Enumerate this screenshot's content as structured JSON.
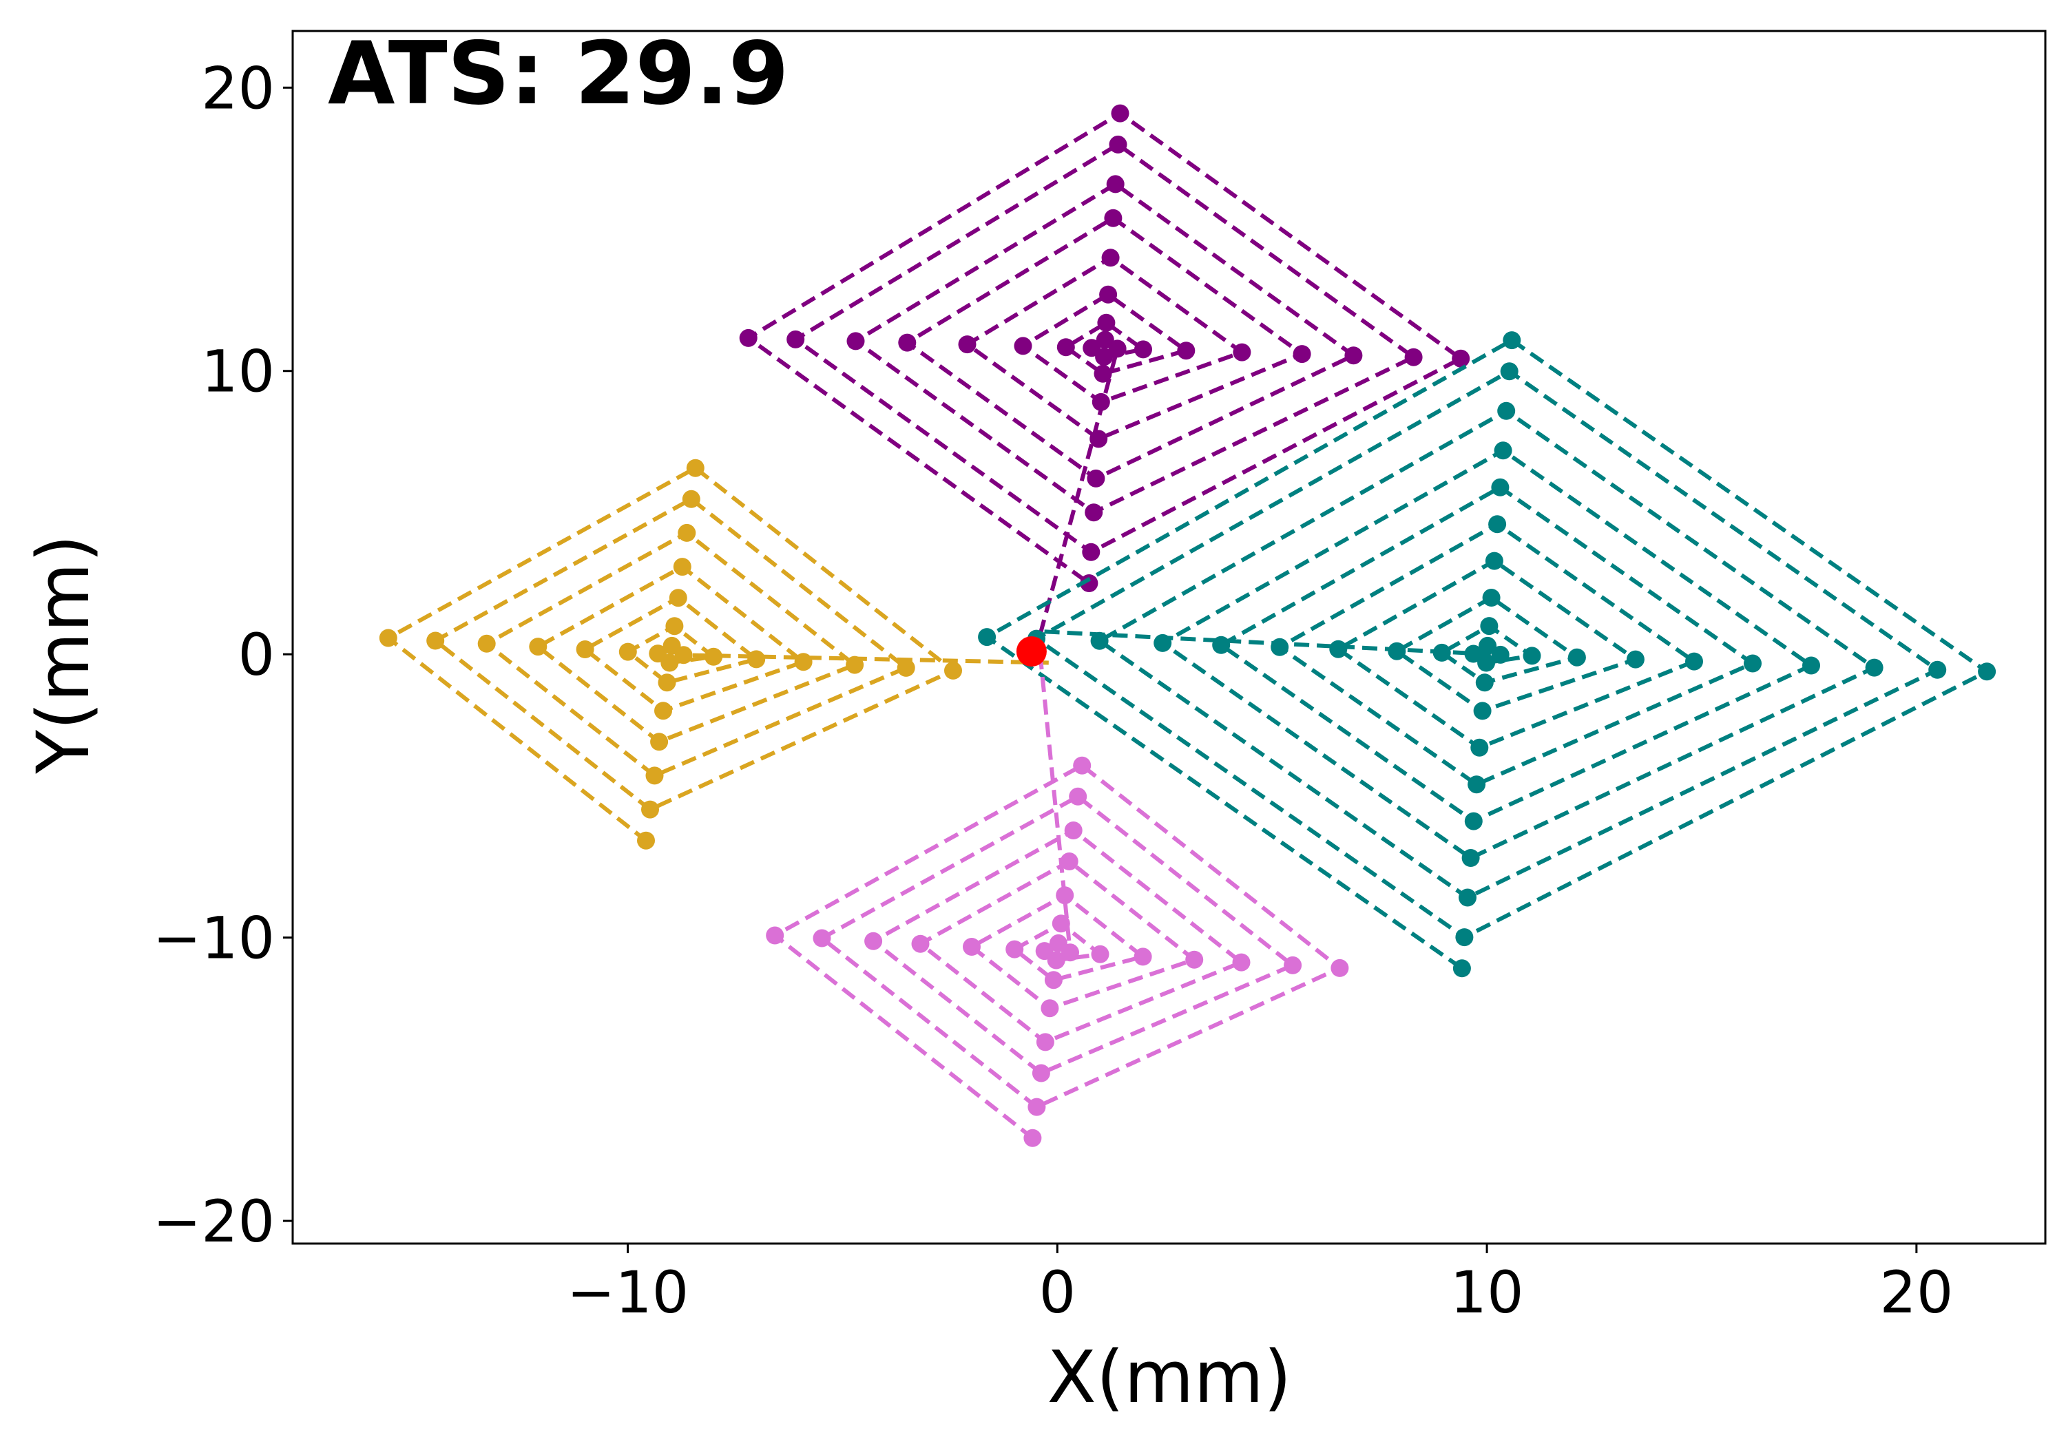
{
  "chart_data": {
    "type": "line",
    "title": "",
    "annotation": "ATS: 29.9",
    "xlabel": "X(mm)",
    "ylabel": "Y(mm)",
    "xlim": [
      -17.8,
      23.0
    ],
    "ylim": [
      -20.8,
      22.0
    ],
    "xticks": [
      -10,
      0,
      10,
      20
    ],
    "yticks": [
      -20,
      -10,
      0,
      10,
      20
    ],
    "xtick_labels": [
      "−10",
      "0",
      "10",
      "20"
    ],
    "ytick_labels": [
      "−20",
      "−10",
      "0",
      "10",
      "20"
    ],
    "grid": false,
    "origin_marker": {
      "x": -0.6,
      "y": 0.1,
      "color": "#ff0000"
    },
    "series": [
      {
        "name": "purple",
        "color": "#800080",
        "center": [
          1.1,
          10.8
        ],
        "start": [
          -0.4,
          0.7
        ],
        "rot_deg": -2.5,
        "scale_x": 1.0,
        "scale_y": 1.0,
        "half_sizes": [
          0.3,
          0.9,
          1.9,
          3.2,
          4.6,
          5.8,
          7.2,
          8.3
        ]
      },
      {
        "name": "teal",
        "color": "#008080",
        "center": [
          10.0,
          0.0
        ],
        "start": [
          -0.3,
          0.8
        ],
        "rot_deg": -3.0,
        "scale_x": 1.05,
        "scale_y": 1.0,
        "half_sizes": [
          0.3,
          1.0,
          2.0,
          3.3,
          4.6,
          5.9,
          7.2,
          8.6,
          10.0,
          11.1
        ]
      },
      {
        "name": "goldenrod",
        "color": "#daa520",
        "center": [
          -9.0,
          0.0
        ],
        "start": [
          -0.2,
          -0.3
        ],
        "rot_deg": -5.0,
        "scale_x": 1.0,
        "scale_y": 1.0,
        "half_sizes": [
          0.3,
          1.0,
          2.0,
          3.1,
          4.3,
          5.5,
          6.6
        ]
      },
      {
        "name": "orchid",
        "color": "#da70d6",
        "center": [
          0.0,
          -10.5
        ],
        "start": [
          -0.4,
          0.0
        ],
        "rot_deg": -5.0,
        "scale_x": 1.0,
        "scale_y": 1.0,
        "half_sizes": [
          0.3,
          1.0,
          2.0,
          3.2,
          4.3,
          5.5,
          6.6
        ]
      }
    ]
  }
}
